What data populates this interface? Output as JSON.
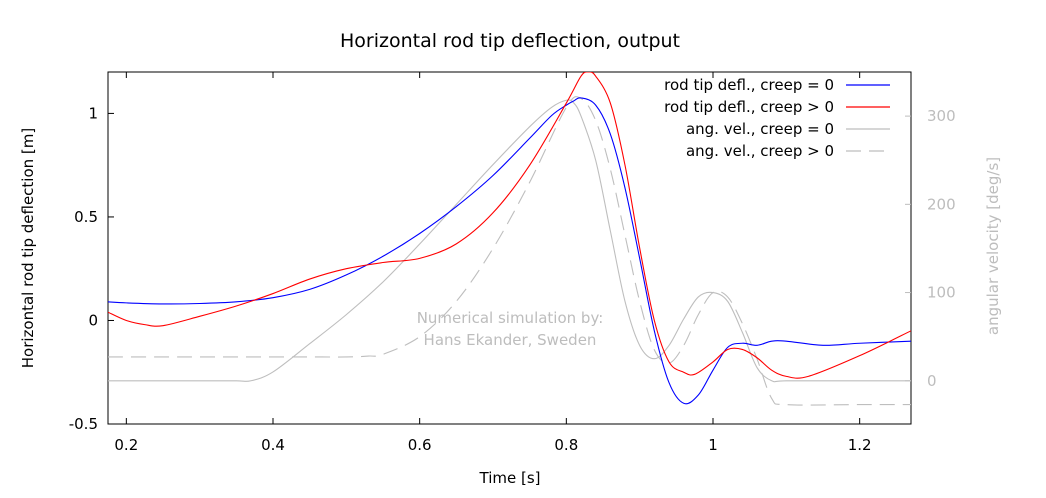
{
  "chart_data": {
    "type": "line",
    "title": "Horizontal rod tip deflection, output",
    "xlabel": "Time [s]",
    "ylabel": "Horizontal rod tip deflection [m]",
    "y2label": "angular velocity [deg/s]",
    "xlim": [
      0.175,
      1.27
    ],
    "ylim": [
      -0.5,
      1.2
    ],
    "y2lim": [
      -49,
      350
    ],
    "xticks": [
      "0.2",
      "0.4",
      "0.6",
      "0.8",
      "1",
      "1.2"
    ],
    "xtick_values": [
      0.2,
      0.4,
      0.6,
      0.8,
      1.0,
      1.2
    ],
    "yticks": [
      "-0.5",
      "0",
      "0.5",
      "1"
    ],
    "ytick_values": [
      -0.5,
      0,
      0.5,
      1
    ],
    "y2ticks": [
      "0",
      "100",
      "200",
      "300"
    ],
    "y2tick_values": [
      0,
      100,
      200,
      300
    ],
    "annotation": [
      "Numerical simulation by:",
      "Hans Ekander, Sweden"
    ],
    "legend_position": "top-right",
    "grid": false,
    "series": [
      {
        "name": "rod tip defl., creep = 0",
        "axis": "left",
        "color": "#0000ff",
        "dash": "solid",
        "x": [
          0.175,
          0.2,
          0.25,
          0.3,
          0.35,
          0.4,
          0.45,
          0.5,
          0.55,
          0.6,
          0.65,
          0.7,
          0.75,
          0.78,
          0.8,
          0.81,
          0.82,
          0.84,
          0.86,
          0.88,
          0.9,
          0.92,
          0.94,
          0.96,
          0.98,
          1.0,
          1.02,
          1.04,
          1.06,
          1.08,
          1.1,
          1.15,
          1.2,
          1.27
        ],
        "y": [
          0.09,
          0.085,
          0.08,
          0.082,
          0.09,
          0.11,
          0.15,
          0.22,
          0.31,
          0.42,
          0.55,
          0.7,
          0.88,
          0.99,
          1.04,
          1.06,
          1.075,
          1.04,
          0.9,
          0.64,
          0.3,
          -0.05,
          -0.3,
          -0.4,
          -0.36,
          -0.24,
          -0.13,
          -0.11,
          -0.12,
          -0.1,
          -0.1,
          -0.12,
          -0.11,
          -0.1
        ]
      },
      {
        "name": "rod tip defl., creep > 0",
        "axis": "left",
        "color": "#ff0000",
        "dash": "solid",
        "x": [
          0.175,
          0.2,
          0.225,
          0.25,
          0.3,
          0.35,
          0.4,
          0.45,
          0.5,
          0.55,
          0.6,
          0.65,
          0.7,
          0.75,
          0.8,
          0.82,
          0.83,
          0.84,
          0.86,
          0.88,
          0.9,
          0.92,
          0.94,
          0.96,
          0.975,
          1.0,
          1.02,
          1.04,
          1.06,
          1.08,
          1.1,
          1.13,
          1.2,
          1.27
        ],
        "y": [
          0.04,
          0.0,
          -0.02,
          -0.025,
          0.02,
          0.07,
          0.13,
          0.2,
          0.25,
          0.28,
          0.3,
          0.37,
          0.52,
          0.75,
          1.05,
          1.18,
          1.2,
          1.18,
          1.05,
          0.75,
          0.35,
          0.0,
          -0.2,
          -0.25,
          -0.26,
          -0.2,
          -0.14,
          -0.14,
          -0.18,
          -0.24,
          -0.27,
          -0.27,
          -0.17,
          -0.05
        ]
      },
      {
        "name": "ang. vel., creep = 0",
        "axis": "right",
        "color": "#bebebe",
        "dash": "solid",
        "x": [
          0.175,
          0.25,
          0.3,
          0.35,
          0.37,
          0.4,
          0.45,
          0.5,
          0.55,
          0.6,
          0.65,
          0.7,
          0.75,
          0.78,
          0.8,
          0.81,
          0.82,
          0.84,
          0.86,
          0.88,
          0.9,
          0.92,
          0.94,
          0.96,
          0.98,
          1.0,
          1.02,
          1.04,
          1.06,
          1.08,
          1.1,
          1.2,
          1.27
        ],
        "y": [
          0,
          0,
          0,
          0,
          0,
          10,
          42,
          75,
          112,
          155,
          200,
          245,
          288,
          310,
          318,
          315,
          300,
          250,
          170,
          90,
          40,
          25,
          40,
          70,
          95,
          100,
          90,
          55,
          15,
          0,
          0,
          0,
          0
        ]
      },
      {
        "name": "ang. vel., creep > 0",
        "axis": "right",
        "color": "#bebebe",
        "dash": "dashed",
        "x": [
          0.175,
          0.25,
          0.3,
          0.35,
          0.4,
          0.45,
          0.5,
          0.53,
          0.55,
          0.6,
          0.65,
          0.7,
          0.75,
          0.8,
          0.82,
          0.84,
          0.86,
          0.88,
          0.9,
          0.92,
          0.94,
          0.96,
          0.98,
          1.0,
          1.02,
          1.04,
          1.06,
          1.08,
          1.1,
          1.2,
          1.27
        ],
        "y": [
          27,
          27,
          27,
          27,
          27,
          27,
          27,
          28,
          30,
          50,
          90,
          150,
          225,
          310,
          320,
          295,
          240,
          165,
          90,
          35,
          20,
          40,
          75,
          100,
          95,
          65,
          25,
          -20,
          -27,
          -27,
          -27
        ]
      }
    ]
  }
}
